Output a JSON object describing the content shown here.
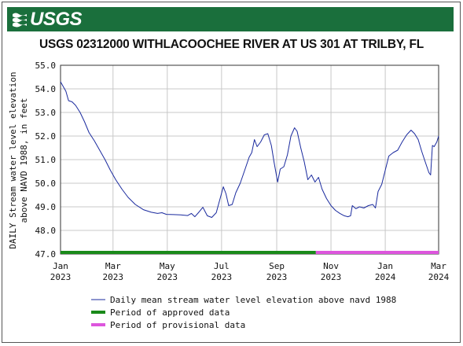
{
  "banner": {
    "logo_text": "USGS",
    "color": "#1a6f3c"
  },
  "title": "USGS 02312000 WITHLACOOCHEE RIVER AT US 301 AT TRILBY, FL",
  "chart_data": {
    "type": "line",
    "title": "USGS 02312000 WITHLACOOCHEE RIVER AT US 301 AT TRILBY, FL",
    "ylabel_lines": [
      "DAILY Stream water level elevation",
      "above NAVD 1988, in feet"
    ],
    "ylim": [
      47.0,
      55.0
    ],
    "y_ticks": [
      "47.0",
      "48.0",
      "49.0",
      "50.0",
      "51.0",
      "52.0",
      "53.0",
      "54.0",
      "55.0"
    ],
    "x_range": [
      "2023-01-01",
      "2024-03-01"
    ],
    "x_ticks": [
      {
        "date": "2023-01-01",
        "month": "Jan",
        "year": "2023"
      },
      {
        "date": "2023-03-01",
        "month": "Mar",
        "year": "2023"
      },
      {
        "date": "2023-05-01",
        "month": "May",
        "year": "2023"
      },
      {
        "date": "2023-07-01",
        "month": "Jul",
        "year": "2023"
      },
      {
        "date": "2023-09-01",
        "month": "Sep",
        "year": "2023"
      },
      {
        "date": "2023-11-01",
        "month": "Nov",
        "year": "2023"
      },
      {
        "date": "2024-01-01",
        "month": "Jan",
        "year": "2024"
      },
      {
        "date": "2024-03-01",
        "month": "Mar",
        "year": "2024"
      }
    ],
    "grid": true,
    "series": [
      {
        "name": "Daily mean stream water level elevation above navd 1988",
        "color": "#1a2a9e",
        "points": [
          [
            "2023-01-01",
            54.3
          ],
          [
            "2023-01-04",
            54.1
          ],
          [
            "2023-01-07",
            53.9
          ],
          [
            "2023-01-10",
            53.5
          ],
          [
            "2023-01-14",
            53.45
          ],
          [
            "2023-01-18",
            53.3
          ],
          [
            "2023-01-23",
            53.0
          ],
          [
            "2023-01-28",
            52.6
          ],
          [
            "2023-02-02",
            52.15
          ],
          [
            "2023-02-08",
            51.8
          ],
          [
            "2023-02-14",
            51.4
          ],
          [
            "2023-02-20",
            51.0
          ],
          [
            "2023-02-26",
            50.55
          ],
          [
            "2023-03-04",
            50.15
          ],
          [
            "2023-03-11",
            49.75
          ],
          [
            "2023-03-18",
            49.4
          ],
          [
            "2023-03-26",
            49.1
          ],
          [
            "2023-04-04",
            48.88
          ],
          [
            "2023-04-13",
            48.77
          ],
          [
            "2023-04-20",
            48.72
          ],
          [
            "2023-04-25",
            48.75
          ],
          [
            "2023-04-30",
            48.68
          ],
          [
            "2023-05-08",
            48.67
          ],
          [
            "2023-05-16",
            48.66
          ],
          [
            "2023-05-24",
            48.63
          ],
          [
            "2023-05-28",
            48.72
          ],
          [
            "2023-06-01",
            48.58
          ],
          [
            "2023-06-05",
            48.75
          ],
          [
            "2023-06-10",
            48.98
          ],
          [
            "2023-06-15",
            48.62
          ],
          [
            "2023-06-20",
            48.55
          ],
          [
            "2023-06-25",
            48.75
          ],
          [
            "2023-06-29",
            49.3
          ],
          [
            "2023-07-03",
            49.85
          ],
          [
            "2023-07-06",
            49.55
          ],
          [
            "2023-07-09",
            49.05
          ],
          [
            "2023-07-13",
            49.1
          ],
          [
            "2023-07-17",
            49.6
          ],
          [
            "2023-07-22",
            50.0
          ],
          [
            "2023-07-27",
            50.55
          ],
          [
            "2023-08-01",
            51.1
          ],
          [
            "2023-08-04",
            51.3
          ],
          [
            "2023-08-07",
            51.85
          ],
          [
            "2023-08-10",
            51.55
          ],
          [
            "2023-08-14",
            51.75
          ],
          [
            "2023-08-18",
            52.05
          ],
          [
            "2023-08-22",
            52.1
          ],
          [
            "2023-08-26",
            51.6
          ],
          [
            "2023-08-29",
            50.9
          ],
          [
            "2023-09-02",
            50.05
          ],
          [
            "2023-09-05",
            50.6
          ],
          [
            "2023-09-09",
            50.7
          ],
          [
            "2023-09-13",
            51.2
          ],
          [
            "2023-09-17",
            52.0
          ],
          [
            "2023-09-21",
            52.35
          ],
          [
            "2023-09-24",
            52.2
          ],
          [
            "2023-09-28",
            51.5
          ],
          [
            "2023-10-02",
            50.9
          ],
          [
            "2023-10-06",
            50.15
          ],
          [
            "2023-10-10",
            50.35
          ],
          [
            "2023-10-14",
            50.05
          ],
          [
            "2023-10-18",
            50.25
          ],
          [
            "2023-10-22",
            49.75
          ],
          [
            "2023-10-27",
            49.35
          ],
          [
            "2023-11-01",
            49.05
          ],
          [
            "2023-11-06",
            48.85
          ],
          [
            "2023-11-11",
            48.72
          ],
          [
            "2023-11-16",
            48.62
          ],
          [
            "2023-11-20",
            48.58
          ],
          [
            "2023-11-23",
            48.62
          ],
          [
            "2023-11-25",
            49.05
          ],
          [
            "2023-11-29",
            48.92
          ],
          [
            "2023-12-03",
            49.0
          ],
          [
            "2023-12-08",
            48.95
          ],
          [
            "2023-12-13",
            49.05
          ],
          [
            "2023-12-18",
            49.1
          ],
          [
            "2023-12-21",
            48.95
          ],
          [
            "2023-12-24",
            49.65
          ],
          [
            "2023-12-28",
            49.95
          ],
          [
            "2024-01-01",
            50.55
          ],
          [
            "2024-01-05",
            51.15
          ],
          [
            "2024-01-10",
            51.3
          ],
          [
            "2024-01-15",
            51.4
          ],
          [
            "2024-01-20",
            51.75
          ],
          [
            "2024-01-25",
            52.05
          ],
          [
            "2024-01-30",
            52.25
          ],
          [
            "2024-02-03",
            52.1
          ],
          [
            "2024-02-07",
            51.85
          ],
          [
            "2024-02-11",
            51.35
          ],
          [
            "2024-02-15",
            50.9
          ],
          [
            "2024-02-19",
            50.45
          ],
          [
            "2024-02-21",
            50.35
          ],
          [
            "2024-02-23",
            51.6
          ],
          [
            "2024-02-25",
            51.55
          ],
          [
            "2024-02-28",
            51.75
          ],
          [
            "2024-03-01",
            52.0
          ]
        ]
      }
    ],
    "status_bars": [
      {
        "label": "Period of approved data",
        "color": "#1a8a1a",
        "from": "2023-01-01",
        "to": "2023-10-15"
      },
      {
        "label": "Period of provisional data",
        "color": "#dd55dd",
        "from": "2023-10-15",
        "to": "2024-03-01"
      }
    ],
    "legend_position": "bottom"
  }
}
